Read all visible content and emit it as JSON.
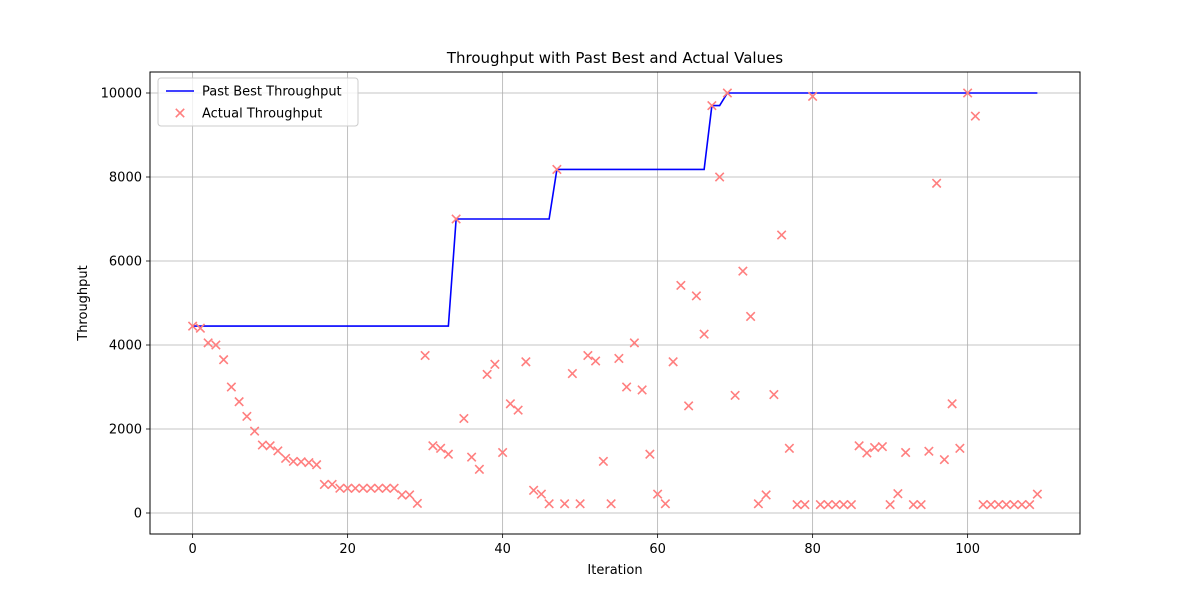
{
  "chart_data": {
    "type": "line",
    "title": "Throughput with Past Best and Actual Values",
    "xlabel": "Iteration",
    "ylabel": "Throughput",
    "xlim": [
      -5.5,
      114.5
    ],
    "ylim": [
      -500,
      10500
    ],
    "xticks": [
      0,
      20,
      40,
      60,
      80,
      100
    ],
    "yticks": [
      0,
      2000,
      4000,
      6000,
      8000,
      10000
    ],
    "grid": true,
    "legend_position": "upper-left",
    "series": [
      {
        "name": "Past Best Throughput",
        "kind": "line",
        "color": "#0000ff",
        "x": [
          0,
          33,
          34,
          46,
          47,
          66,
          67,
          68,
          69,
          109
        ],
        "y": [
          4450,
          4450,
          7000,
          7000,
          8180,
          8180,
          9700,
          9700,
          10000,
          10000
        ]
      },
      {
        "name": "Actual Throughput",
        "kind": "scatter",
        "color": "#ff7f7f",
        "x": [
          0,
          1,
          2,
          3,
          4,
          5,
          6,
          7,
          8,
          9,
          10,
          11,
          12,
          13,
          14,
          15,
          16,
          17,
          18,
          19,
          20,
          21,
          22,
          23,
          24,
          25,
          26,
          27,
          28,
          29,
          30,
          31,
          32,
          33,
          34,
          35,
          36,
          37,
          38,
          39,
          40,
          41,
          42,
          43,
          44,
          45,
          46,
          47,
          48,
          49,
          50,
          51,
          52,
          53,
          54,
          55,
          56,
          57,
          58,
          59,
          60,
          61,
          62,
          63,
          64,
          65,
          66,
          67,
          68,
          69,
          70,
          71,
          72,
          73,
          74,
          75,
          76,
          77,
          78,
          79,
          80,
          81,
          82,
          83,
          84,
          85,
          86,
          87,
          88,
          89,
          90,
          91,
          92,
          93,
          94,
          95,
          96,
          97,
          98,
          99,
          100,
          101,
          102,
          103,
          104,
          105,
          106,
          107,
          108,
          109
        ],
        "y": [
          4450,
          4400,
          4050,
          4000,
          3650,
          3000,
          2650,
          2300,
          1950,
          1620,
          1600,
          1480,
          1300,
          1230,
          1220,
          1200,
          1150,
          680,
          680,
          590,
          590,
          590,
          590,
          590,
          590,
          590,
          590,
          430,
          430,
          230,
          3750,
          1600,
          1540,
          1400,
          7000,
          2250,
          1330,
          1040,
          3300,
          3540,
          1440,
          2600,
          2450,
          3600,
          540,
          450,
          220,
          8180,
          220,
          3320,
          220,
          3750,
          3620,
          1230,
          220,
          3680,
          3000,
          4050,
          2930,
          1400,
          450,
          220,
          3600,
          5420,
          2550,
          5170,
          4260,
          9700,
          8000,
          10000,
          2800,
          5760,
          4680,
          220,
          430,
          2820,
          6620,
          1540,
          200,
          200,
          9920,
          200,
          200,
          200,
          200,
          200,
          1600,
          1430,
          1560,
          1580,
          200,
          460,
          1440,
          200,
          200,
          1470,
          7850,
          1270,
          2600,
          1540,
          10000,
          9450,
          200,
          200,
          200,
          200,
          200,
          200,
          200,
          450
        ]
      }
    ]
  }
}
